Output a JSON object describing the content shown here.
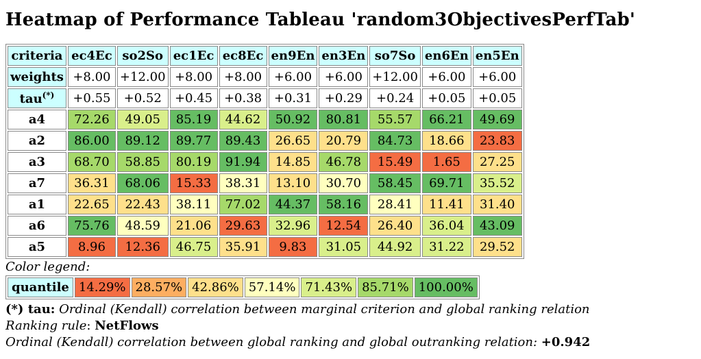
{
  "title": "Heatmap of Performance Tableau 'random3ObjectivesPerfTab'",
  "table": {
    "corner": "criteria",
    "columns": [
      "ec4Ec",
      "so2So",
      "ec1Ec",
      "ec8Ec",
      "en9En",
      "en3En",
      "so7So",
      "en6En",
      "en5En"
    ],
    "weights_label": "weights",
    "weights": [
      "+8.00",
      "+12.00",
      "+8.00",
      "+8.00",
      "+6.00",
      "+6.00",
      "+12.00",
      "+6.00",
      "+6.00"
    ],
    "tau_label": "tau",
    "tau_sup": "(*)",
    "tau": [
      "+0.55",
      "+0.52",
      "+0.45",
      "+0.38",
      "+0.31",
      "+0.29",
      "+0.24",
      "+0.05",
      "+0.05"
    ],
    "rows": [
      {
        "label": "a4",
        "values": [
          "72.26",
          "49.05",
          "85.19",
          "44.62",
          "50.92",
          "80.81",
          "55.57",
          "66.21",
          "49.69"
        ],
        "q": [
          5,
          4,
          6,
          4,
          6,
          6,
          5,
          6,
          6
        ]
      },
      {
        "label": "a2",
        "values": [
          "86.00",
          "89.12",
          "89.77",
          "89.43",
          "26.65",
          "20.79",
          "84.73",
          "18.66",
          "23.83"
        ],
        "q": [
          6,
          6,
          6,
          6,
          2,
          2,
          6,
          2,
          0
        ]
      },
      {
        "label": "a3",
        "values": [
          "68.70",
          "58.85",
          "80.19",
          "91.94",
          "14.85",
          "46.78",
          "15.49",
          "1.65",
          "27.25"
        ],
        "q": [
          5,
          5,
          5,
          6,
          2,
          5,
          0,
          0,
          2
        ]
      },
      {
        "label": "a7",
        "values": [
          "36.31",
          "68.06",
          "15.33",
          "38.31",
          "13.10",
          "30.70",
          "58.45",
          "69.71",
          "35.52"
        ],
        "q": [
          2,
          6,
          0,
          3,
          2,
          3,
          6,
          6,
          4
        ]
      },
      {
        "label": "a1",
        "values": [
          "22.65",
          "22.43",
          "38.11",
          "77.02",
          "44.37",
          "58.16",
          "28.41",
          "11.41",
          "31.40"
        ],
        "q": [
          2,
          2,
          3,
          5,
          6,
          6,
          3,
          2,
          2
        ]
      },
      {
        "label": "a6",
        "values": [
          "75.76",
          "48.59",
          "21.06",
          "29.63",
          "32.96",
          "12.54",
          "26.40",
          "36.04",
          "43.09"
        ],
        "q": [
          6,
          3,
          2,
          0,
          4,
          0,
          2,
          4,
          6
        ]
      },
      {
        "label": "a5",
        "values": [
          "8.96",
          "12.36",
          "46.75",
          "35.91",
          "9.83",
          "31.05",
          "44.92",
          "31.22",
          "29.52"
        ],
        "q": [
          0,
          0,
          4,
          2,
          0,
          4,
          4,
          4,
          2
        ]
      }
    ]
  },
  "legend": {
    "caption": "Color legend:",
    "label": "quantile",
    "items": [
      "14.29%",
      "28.57%",
      "42.86%",
      "57.14%",
      "71.43%",
      "85.71%",
      "100.00%"
    ]
  },
  "colors": [
    "#f46d43",
    "#fdae61",
    "#fee08b",
    "#ffffbf",
    "#d9ef8b",
    "#a6d96a",
    "#66bd63"
  ],
  "notes": {
    "tau_prefix": "(*) tau:",
    "tau_text": "Ordinal (Kendall) correlation between marginal criterion and global ranking relation",
    "rule_label": "Ranking rule",
    "rule_colon": ":",
    "rule_value": "NetFlows",
    "corr_text": "Ordinal (Kendall) correlation between global ranking and global outranking relation:",
    "corr_value": "+0.942"
  }
}
